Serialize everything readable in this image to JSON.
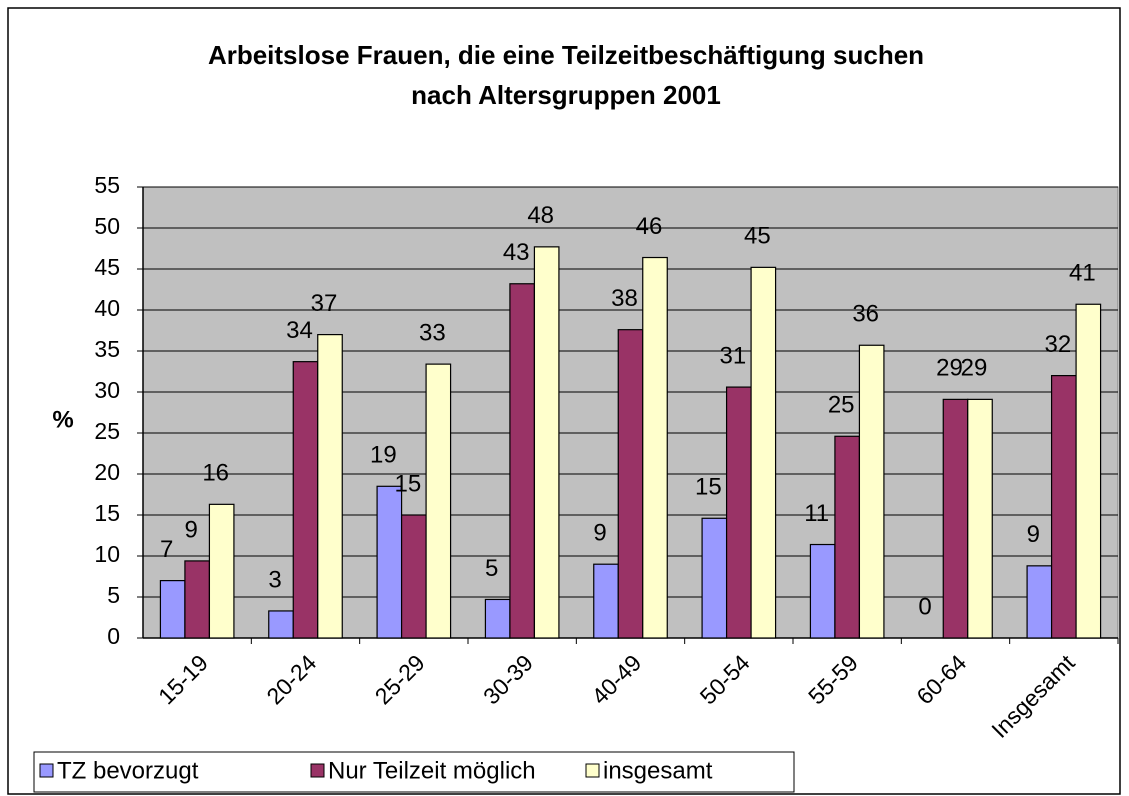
{
  "chart_data": {
    "type": "bar",
    "title": "Arbeitslose Frauen, die eine Teilzeitbeschäftigung suchen",
    "subtitle": "nach Altersgruppen 2001",
    "y_label": "%",
    "categories": [
      "15-19",
      "20-24",
      "25-29",
      "30-39",
      "40-49",
      "50-54",
      "55-59",
      "60-64",
      "Insgesamt"
    ],
    "series": [
      {
        "name": "TZ bevorzugt",
        "color": "#9999ff",
        "values": [
          7.0,
          3.3,
          18.5,
          4.7,
          9.0,
          14.6,
          11.4,
          0,
          8.8
        ],
        "value_labels": [
          "7",
          "3",
          "19",
          "5",
          "9",
          "15",
          "11",
          "0",
          "9"
        ]
      },
      {
        "name": "Nur Teilzeit möglich",
        "color": "#993366",
        "values": [
          9.4,
          33.7,
          15.0,
          43.2,
          37.6,
          30.6,
          24.6,
          29.1,
          32.0
        ],
        "value_labels": [
          "9",
          "34",
          "15",
          "43",
          "38",
          "31",
          "25",
          "29",
          "32"
        ]
      },
      {
        "name": "insgesamt",
        "color": "#ffffcc",
        "values": [
          16.3,
          37.0,
          33.4,
          47.7,
          46.4,
          45.2,
          35.7,
          29.1,
          40.7
        ],
        "value_labels": [
          "16",
          "37",
          "33",
          "48",
          "46",
          "45",
          "36",
          "29",
          "41"
        ]
      }
    ],
    "ylim": [
      0,
      55
    ],
    "yticks": [
      0,
      5,
      10,
      15,
      20,
      25,
      30,
      35,
      40,
      45,
      50,
      55
    ],
    "grid": true,
    "plot_background": "#c0c0c0",
    "legend": "bottom"
  }
}
